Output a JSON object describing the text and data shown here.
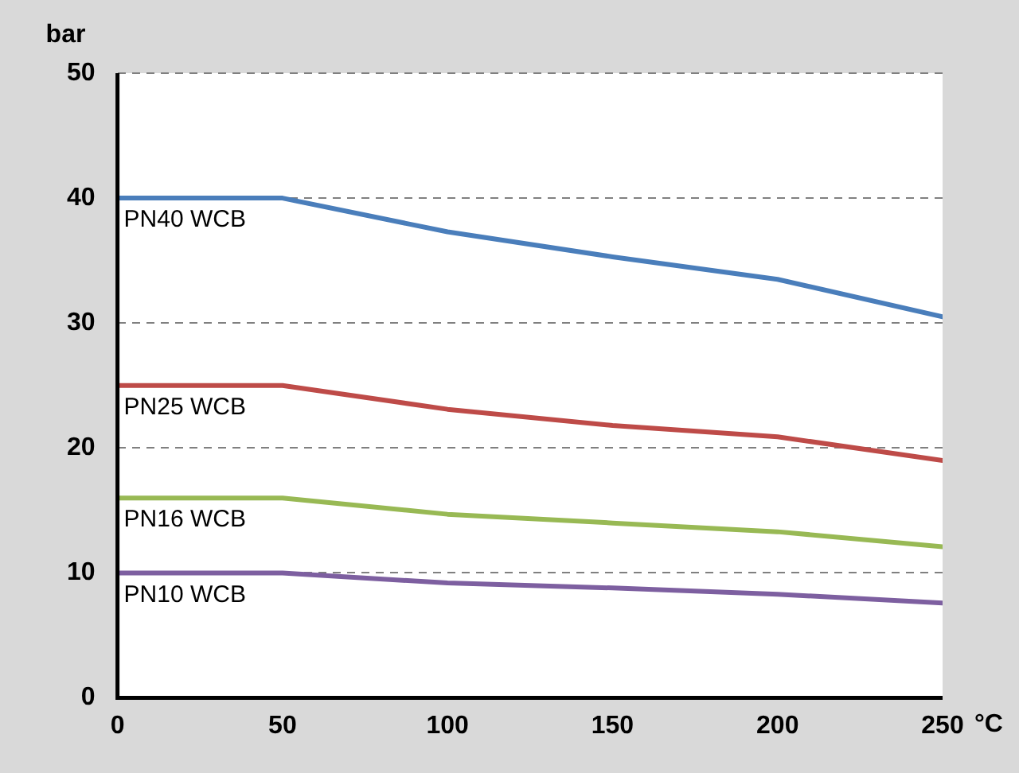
{
  "chart_data": {
    "type": "line",
    "xlabel": "°C",
    "ylabel": "bar",
    "x": [
      0,
      50,
      100,
      150,
      200,
      250
    ],
    "series": [
      {
        "name": "PN40 WCB",
        "color": "#4a7ebb",
        "values": [
          40,
          40,
          37.3,
          35.3,
          33.5,
          30.5
        ]
      },
      {
        "name": "PN25 WCB",
        "color": "#be4b48",
        "values": [
          25,
          25,
          23.1,
          21.8,
          20.9,
          19.0
        ]
      },
      {
        "name": "PN16 WCB",
        "color": "#98b954",
        "values": [
          16,
          16,
          14.7,
          14.0,
          13.3,
          12.1
        ]
      },
      {
        "name": "PN10 WCB",
        "color": "#7d5fa0",
        "values": [
          10,
          10,
          9.2,
          8.8,
          8.3,
          7.6
        ]
      }
    ],
    "xlim": [
      0,
      250
    ],
    "xticks": [
      0,
      50,
      100,
      150,
      200,
      250
    ],
    "ylim": [
      0,
      50
    ],
    "yticks": [
      0,
      10,
      20,
      30,
      40,
      50
    ],
    "grid": "y",
    "legend": false,
    "marker": "none",
    "line_style": "solid"
  }
}
